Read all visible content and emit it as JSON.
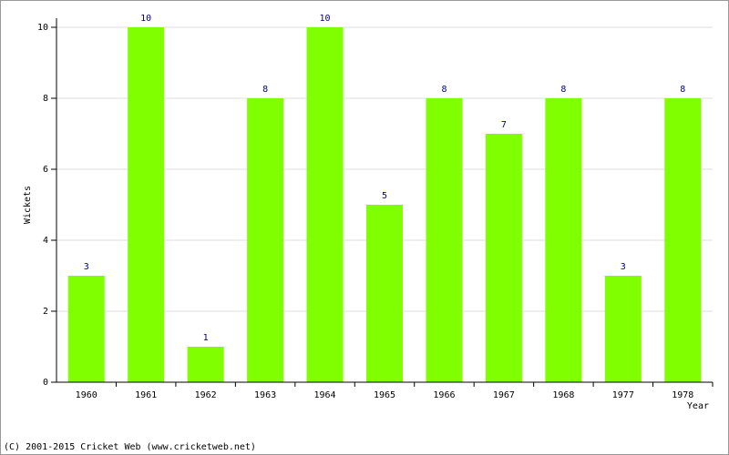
{
  "chart_data": {
    "type": "bar",
    "categories": [
      "1960",
      "1961",
      "1962",
      "1963",
      "1964",
      "1965",
      "1966",
      "1967",
      "1968",
      "1977",
      "1978"
    ],
    "values": [
      3,
      10,
      1,
      8,
      10,
      5,
      8,
      7,
      8,
      3,
      8
    ],
    "color": "#80ff00",
    "y_label": "Wickets",
    "x_label": "Year",
    "footer": "(C) 2001-2015 Cricket Web (www.cricketweb.net)",
    "ylim": [
      0,
      10
    ],
    "yticks": [
      0,
      2,
      4,
      6,
      8,
      10
    ],
    "grid": true
  }
}
